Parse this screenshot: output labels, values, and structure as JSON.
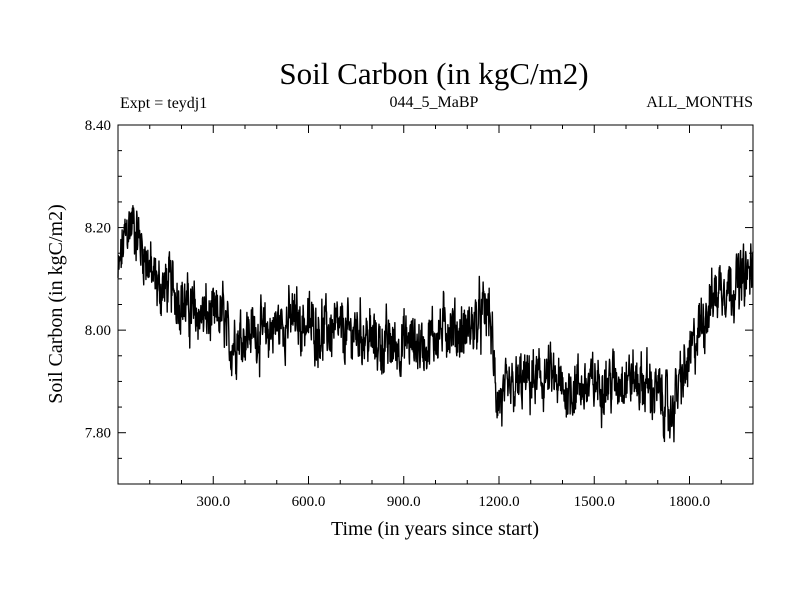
{
  "chart_data": {
    "type": "line",
    "title": "Soil Carbon (in kgC/m2)",
    "subtitle_left": "Expt = teydj1",
    "subtitle_center": "044_5_MaBP",
    "subtitle_right": "ALL_MONTHS",
    "xlabel": "Time (in years since start)",
    "ylabel": "Soil Carbon (in kgC/m2)",
    "xlim": [
      0,
      2000
    ],
    "ylim": [
      7.7,
      8.4
    ],
    "xticks": [
      300,
      600,
      900,
      1200,
      1500,
      1800
    ],
    "xtick_labels": [
      "300.0",
      "600.0",
      "900.0",
      "1200.0",
      "1500.0",
      "1800.0"
    ],
    "yticks": [
      7.8,
      8.0,
      8.2,
      8.4
    ],
    "ytick_labels": [
      "7.80",
      "8.00",
      "8.20",
      "8.40"
    ],
    "grid": false,
    "series": [
      {
        "name": "Soil Carbon",
        "color": "#000000",
        "x": [
          0,
          15,
          30,
          50,
          70,
          90,
          110,
          130,
          160,
          190,
          220,
          260,
          300,
          330,
          350,
          380,
          420,
          460,
          500,
          550,
          600,
          640,
          680,
          720,
          760,
          800,
          840,
          880,
          920,
          960,
          1000,
          1040,
          1080,
          1120,
          1150,
          1170,
          1190,
          1210,
          1240,
          1280,
          1320,
          1360,
          1400,
          1440,
          1480,
          1520,
          1560,
          1600,
          1640,
          1680,
          1720,
          1740,
          1760,
          1800,
          1830,
          1860,
          1900,
          1940,
          1970,
          2000
        ],
        "y": [
          8.1,
          8.16,
          8.2,
          8.21,
          8.17,
          8.14,
          8.1,
          8.08,
          8.09,
          8.07,
          8.04,
          8.03,
          8.02,
          8.03,
          7.97,
          7.99,
          8.0,
          7.99,
          8.01,
          8.02,
          8.01,
          8.0,
          8.0,
          7.99,
          8.0,
          7.98,
          7.97,
          7.97,
          7.98,
          7.97,
          7.99,
          8.01,
          7.99,
          8.01,
          8.03,
          8.04,
          7.88,
          7.86,
          7.88,
          7.9,
          7.9,
          7.91,
          7.88,
          7.89,
          7.89,
          7.9,
          7.9,
          7.91,
          7.9,
          7.89,
          7.86,
          7.83,
          7.88,
          7.94,
          8.0,
          8.05,
          8.09,
          8.09,
          8.1,
          8.12
        ]
      }
    ]
  }
}
